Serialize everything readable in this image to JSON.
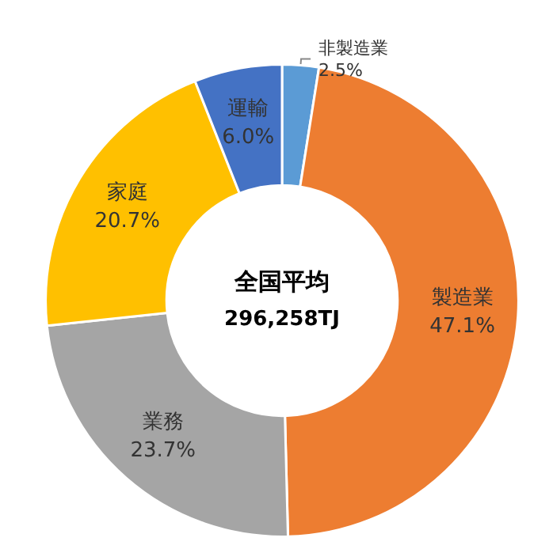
{
  "chart_data": {
    "type": "donut",
    "title": "全国平均",
    "subtitle": "296,258TJ",
    "categories": [
      "非製造業",
      "製造業",
      "業務",
      "家庭",
      "運輸"
    ],
    "values": [
      2.5,
      47.1,
      23.7,
      20.7,
      6.0
    ],
    "value_labels": [
      "2.5%",
      "47.1%",
      "23.7%",
      "20.7%",
      "6.0%"
    ],
    "colors": [
      "#5b9bd5",
      "#ed7d31",
      "#a5a5a5",
      "#ffc000",
      "#4472c4"
    ],
    "legend": false
  }
}
